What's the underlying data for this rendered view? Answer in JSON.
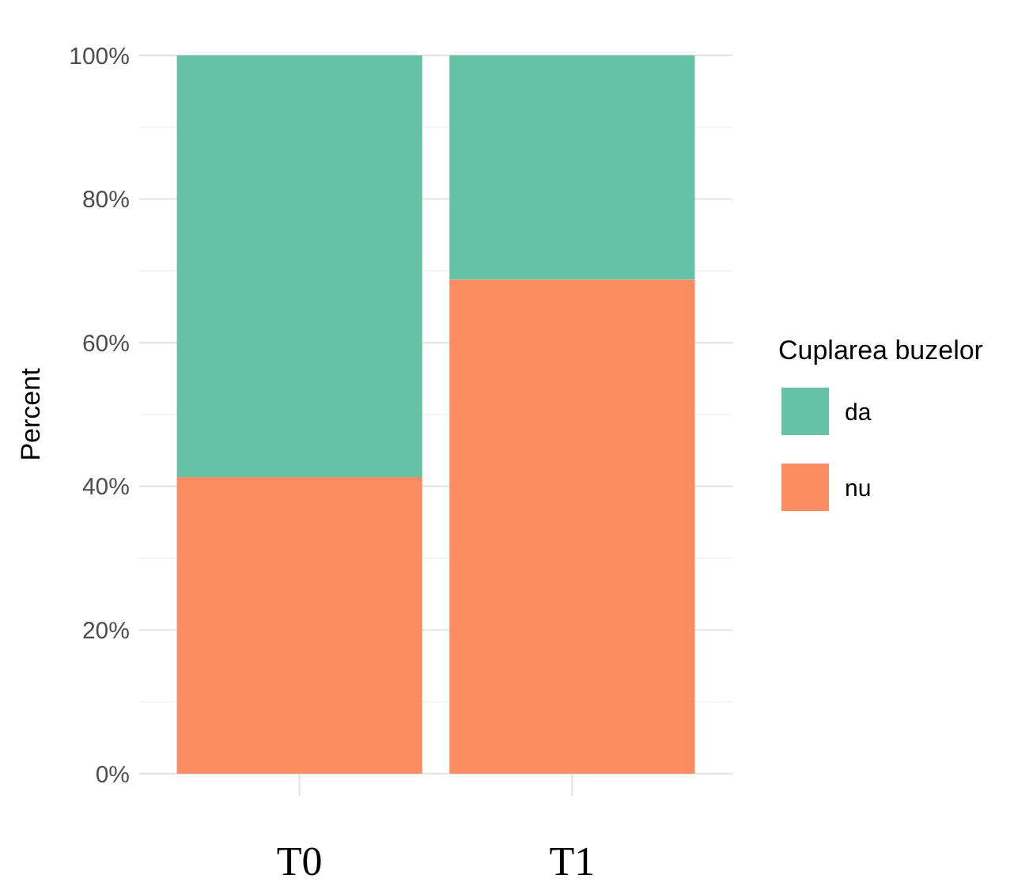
{
  "chart_data": {
    "type": "bar",
    "stacked": true,
    "categories": [
      "T0",
      "T1"
    ],
    "ylabel": "Percent",
    "legend_title": "Cuplarea buzelor",
    "legend": "right",
    "grid": true,
    "series": [
      {
        "name": "nu",
        "color": "#fc8d62",
        "values": [
          41.3,
          68.8
        ]
      },
      {
        "name": "da",
        "color": "#66c2a5",
        "values": [
          58.7,
          31.2
        ]
      }
    ],
    "ylim": [
      0,
      100
    ],
    "yticks": [
      {
        "value": 0,
        "label": "0%"
      },
      {
        "value": 20,
        "label": "20%"
      },
      {
        "value": 40,
        "label": "40%"
      },
      {
        "value": 60,
        "label": "60%"
      },
      {
        "value": 80,
        "label": "80%"
      },
      {
        "value": 100,
        "label": "100%"
      }
    ]
  }
}
